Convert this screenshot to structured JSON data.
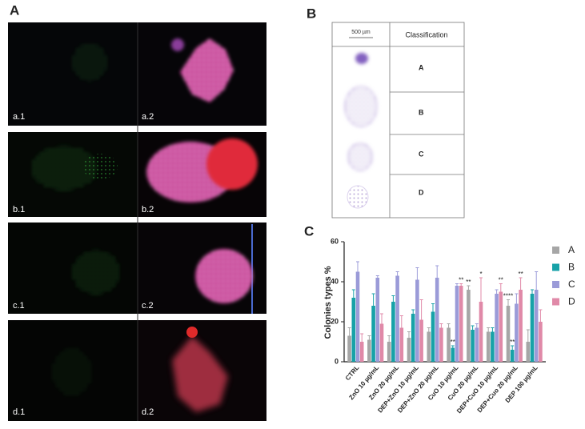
{
  "panel_a": {
    "label": "A",
    "images": [
      "a.1",
      "a.2",
      "b.1",
      "b.2",
      "c.1",
      "c.2",
      "d.1",
      "d.2"
    ]
  },
  "panel_b": {
    "label": "B",
    "scale_bar": "500 µm",
    "header": "Classification",
    "rows": [
      "A",
      "B",
      "C",
      "D"
    ]
  },
  "panel_c": {
    "label": "C"
  },
  "chart_data": {
    "type": "bar",
    "y_label": "Colonies types %",
    "categories": [
      "CTRL",
      "ZnO 10 µg/mL",
      "ZnO 20 µg/mL",
      "DEP+ZnO 10 µg/mL",
      "DEP+ZnO 20 µg/mL",
      "CuO 10 µg/mL",
      "CuO 20 µg/mL",
      "DEP+CuO 10 µg/mL",
      "DEP+Cuo 20 µg/mL",
      "DEP 100 µg/mL"
    ],
    "series": [
      {
        "name": "A",
        "color": "#a6a6a6",
        "values": [
          13,
          11,
          10,
          12,
          15,
          17,
          36,
          15,
          28,
          10
        ],
        "errors": [
          4,
          2,
          3,
          3,
          2,
          2,
          2,
          2,
          3,
          6
        ],
        "significance": [
          null,
          null,
          null,
          null,
          null,
          null,
          "**",
          null,
          "****",
          null
        ]
      },
      {
        "name": "B",
        "color": "#17a2a8",
        "values": [
          32,
          28,
          30,
          24,
          25,
          7,
          16,
          15,
          6,
          34
        ],
        "errors": [
          4,
          6,
          3,
          2,
          4,
          1,
          2,
          2,
          2,
          2
        ],
        "significance": [
          null,
          null,
          null,
          null,
          null,
          "**",
          null,
          null,
          "**",
          null
        ]
      },
      {
        "name": "C",
        "color": "#9b9bd8",
        "values": [
          45,
          42,
          43,
          41,
          42,
          38,
          17,
          34,
          29,
          36
        ],
        "errors": [
          5,
          1,
          2,
          6,
          6,
          1,
          2,
          2,
          5,
          9
        ],
        "significance": [
          null,
          null,
          null,
          null,
          null,
          null,
          null,
          null,
          null,
          null
        ]
      },
      {
        "name": "D",
        "color": "#e089a8",
        "values": [
          10,
          19,
          17,
          21,
          17,
          38,
          30,
          35,
          36,
          20
        ],
        "errors": [
          4,
          5,
          6,
          10,
          2,
          1,
          12,
          4,
          6,
          6
        ],
        "significance": [
          null,
          null,
          null,
          null,
          null,
          "**",
          "*",
          "**",
          "**",
          null
        ]
      }
    ],
    "ylim": [
      0,
      60
    ],
    "yticks": [
      0,
      20,
      40,
      60
    ],
    "grid": false,
    "legend": "right"
  }
}
